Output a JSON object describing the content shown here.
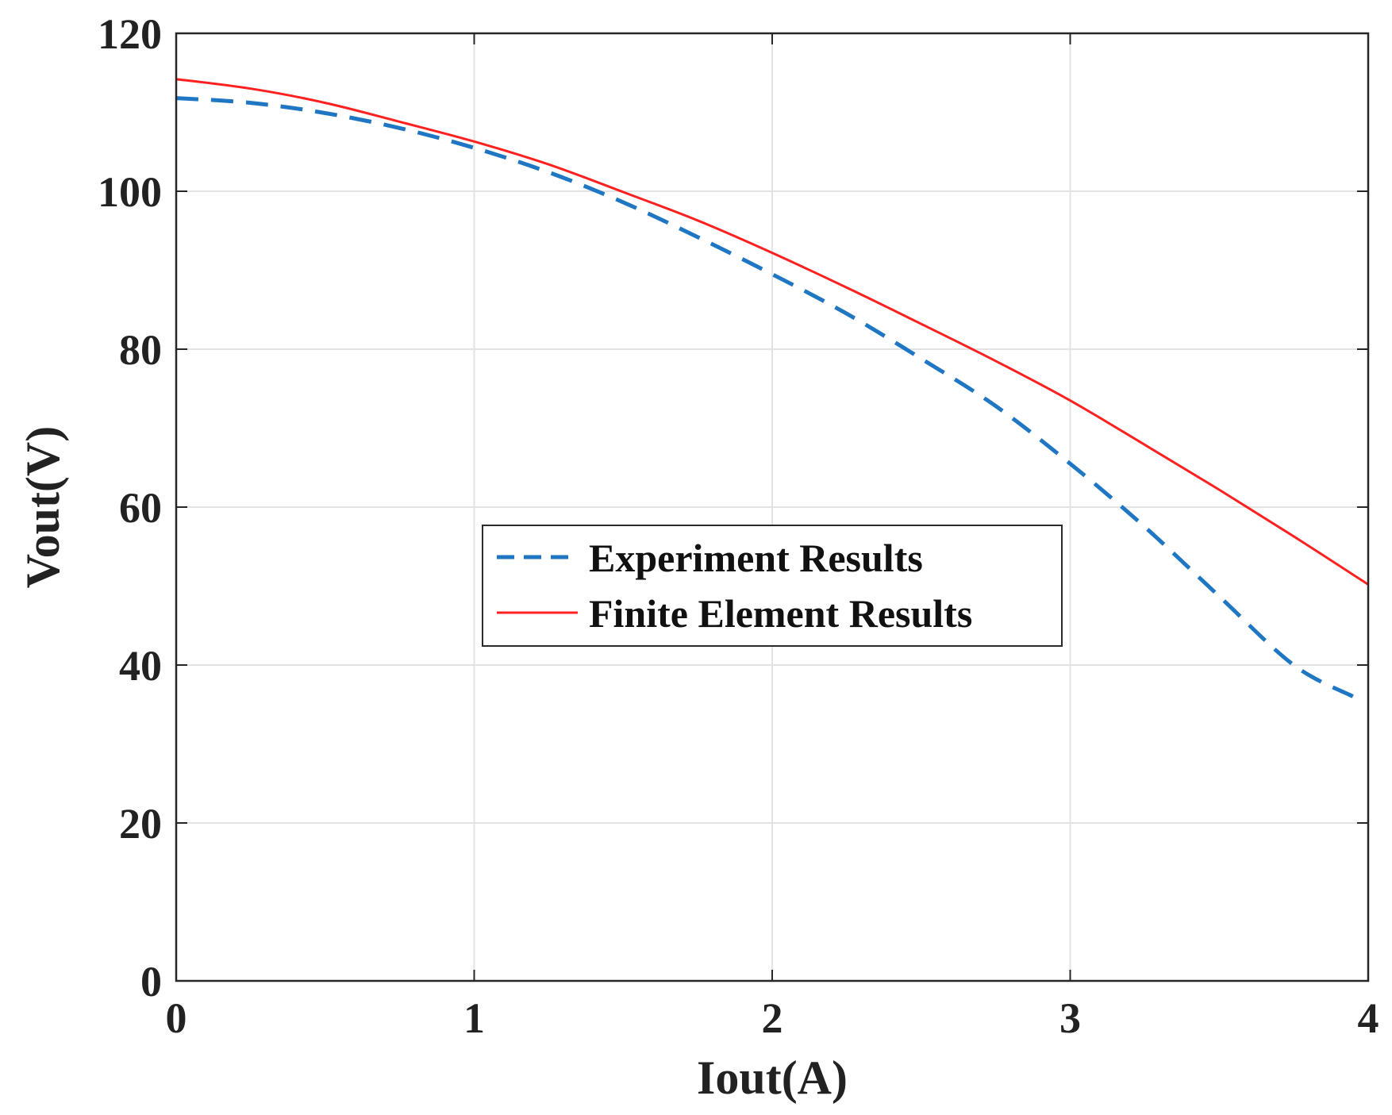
{
  "chart_data": {
    "type": "line",
    "title": "",
    "xlabel": "Iout(A)",
    "ylabel": "Vout(V)",
    "xlim": [
      0,
      4
    ],
    "ylim": [
      0,
      120
    ],
    "xticks": [
      0,
      1,
      2,
      3,
      4
    ],
    "xtick_labels": [
      "0",
      "1",
      "2",
      "3",
      "4"
    ],
    "yticks": [
      0,
      20,
      40,
      60,
      80,
      100,
      120
    ],
    "ytick_labels": [
      "0",
      "20",
      "40",
      "60",
      "80",
      "100",
      "120"
    ],
    "grid": true,
    "legend_position": "center",
    "series": [
      {
        "name": "Experiment Results",
        "style": "dashed",
        "color": "#1f77c4",
        "x": [
          0,
          0.25,
          0.5,
          0.75,
          1.0,
          1.25,
          1.5,
          1.75,
          2.0,
          2.25,
          2.5,
          2.75,
          3.0,
          3.25,
          3.5,
          3.75,
          3.95
        ],
        "y": [
          111.8,
          111.2,
          109.9,
          108.0,
          105.5,
          102.4,
          98.6,
          94.2,
          89.5,
          84.5,
          78.8,
          72.8,
          65.5,
          57.5,
          48.7,
          40.0,
          36.0
        ]
      },
      {
        "name": "Finite Element Results",
        "style": "solid",
        "color": "#ff2020",
        "x": [
          0,
          0.25,
          0.5,
          0.75,
          1.0,
          1.25,
          1.5,
          1.75,
          2.0,
          2.25,
          2.5,
          2.75,
          3.0,
          3.25,
          3.5,
          3.75,
          4.0
        ],
        "y": [
          114.2,
          113.0,
          111.2,
          108.8,
          106.3,
          103.4,
          99.9,
          96.3,
          92.2,
          87.8,
          83.2,
          78.5,
          73.5,
          67.9,
          62.2,
          56.3,
          50.2
        ]
      }
    ]
  }
}
